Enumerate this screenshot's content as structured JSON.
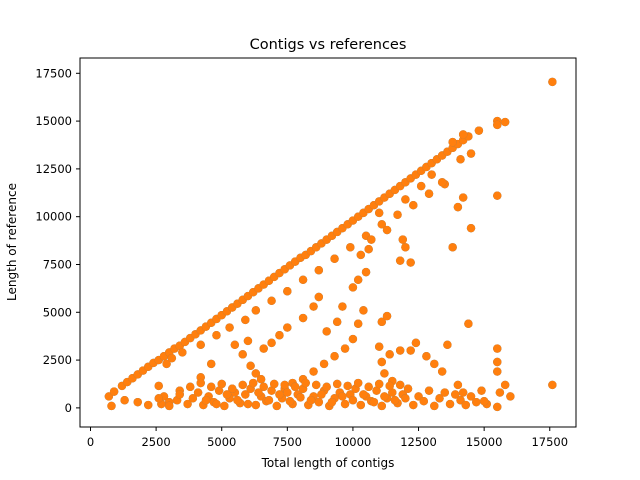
{
  "chart_data": {
    "type": "scatter",
    "title": "Contigs vs references",
    "xlabel": "Total length of contigs",
    "ylabel": "Length of reference",
    "xlim": [
      -400,
      18500
    ],
    "ylim": [
      -1000,
      18300
    ],
    "x_ticks": [
      0,
      2500,
      5000,
      7500,
      10000,
      12500,
      15000,
      17500
    ],
    "y_ticks": [
      0,
      2500,
      5000,
      7500,
      10000,
      12500,
      15000,
      17500
    ],
    "grid": false,
    "legend": "none",
    "colors": {
      "point": "#ff7f0e",
      "point_under": "#1f77b4"
    },
    "series": [
      {
        "points": [
          [
            700,
            600
          ],
          [
            900,
            850
          ],
          [
            1200,
            1150
          ],
          [
            1400,
            1350
          ],
          [
            1600,
            1550
          ],
          [
            1800,
            1750
          ],
          [
            2000,
            1950
          ],
          [
            2200,
            2150
          ],
          [
            2400,
            2350
          ],
          [
            2600,
            2500
          ],
          [
            2800,
            2700
          ],
          [
            3000,
            2900
          ],
          [
            3200,
            3100
          ],
          [
            3400,
            3250
          ],
          [
            3600,
            3450
          ],
          [
            3800,
            3650
          ],
          [
            4000,
            3850
          ],
          [
            4200,
            4050
          ],
          [
            4400,
            4250
          ],
          [
            4600,
            4450
          ],
          [
            4800,
            4650
          ],
          [
            5000,
            4850
          ],
          [
            5200,
            5050
          ],
          [
            5400,
            5250
          ],
          [
            5600,
            5450
          ],
          [
            5800,
            5650
          ],
          [
            6000,
            5850
          ],
          [
            6200,
            6050
          ],
          [
            6400,
            6250
          ],
          [
            6600,
            6450
          ],
          [
            6800,
            6650
          ],
          [
            7000,
            6850
          ],
          [
            7200,
            7050
          ],
          [
            7400,
            7250
          ],
          [
            7600,
            7450
          ],
          [
            7800,
            7650
          ],
          [
            8000,
            7850
          ],
          [
            8200,
            8000
          ],
          [
            8400,
            8200
          ],
          [
            8600,
            8400
          ],
          [
            8800,
            8600
          ],
          [
            9000,
            8800
          ],
          [
            9200,
            9000
          ],
          [
            9400,
            9200
          ],
          [
            9600,
            9400
          ],
          [
            9800,
            9600
          ],
          [
            10000,
            9800
          ],
          [
            10200,
            10000
          ],
          [
            10400,
            10200
          ],
          [
            10600,
            10400
          ],
          [
            10800,
            10600
          ],
          [
            11000,
            10800
          ],
          [
            11200,
            11000
          ],
          [
            11400,
            11200
          ],
          [
            11600,
            11400
          ],
          [
            11800,
            11600
          ],
          [
            12000,
            11800
          ],
          [
            12200,
            12000
          ],
          [
            12400,
            12200
          ],
          [
            12600,
            12400
          ],
          [
            12800,
            12600
          ],
          [
            13000,
            12800
          ],
          [
            13200,
            13000
          ],
          [
            13400,
            13200
          ],
          [
            13600,
            13400
          ],
          [
            13800,
            13600
          ],
          [
            14000,
            13800
          ],
          [
            14200,
            14000
          ],
          [
            14400,
            14200
          ],
          [
            14800,
            14500
          ],
          [
            15500,
            15000
          ],
          [
            15800,
            14950
          ],
          [
            15500,
            14800
          ],
          [
            17600,
            17050
          ],
          [
            2900,
            2300
          ],
          [
            3100,
            2600
          ],
          [
            3500,
            2900
          ],
          [
            4200,
            3300
          ],
          [
            4800,
            3800
          ],
          [
            5300,
            4200
          ],
          [
            5900,
            4600
          ],
          [
            6300,
            5100
          ],
          [
            6900,
            5600
          ],
          [
            7500,
            6100
          ],
          [
            8100,
            6700
          ],
          [
            8700,
            7200
          ],
          [
            9300,
            7800
          ],
          [
            9900,
            8400
          ],
          [
            10500,
            9000
          ],
          [
            11100,
            9600
          ],
          [
            11700,
            10100
          ],
          [
            12300,
            10600
          ],
          [
            12900,
            11200
          ],
          [
            13500,
            11700
          ],
          [
            11000,
            10200
          ],
          [
            11300,
            9300
          ],
          [
            12000,
            10900
          ],
          [
            12600,
            11600
          ],
          [
            13000,
            12200
          ],
          [
            13400,
            11800
          ],
          [
            14100,
            13000
          ],
          [
            14500,
            13300
          ],
          [
            13800,
            13900
          ],
          [
            14200,
            14300
          ],
          [
            10700,
            8800
          ],
          [
            10600,
            8300
          ],
          [
            10300,
            8000
          ],
          [
            11900,
            8800
          ],
          [
            12000,
            8400
          ],
          [
            11800,
            7700
          ],
          [
            12200,
            7600
          ],
          [
            10500,
            7100
          ],
          [
            10200,
            6700
          ],
          [
            10000,
            6300
          ],
          [
            13800,
            8400
          ],
          [
            14000,
            10500
          ],
          [
            14200,
            11000
          ],
          [
            14500,
            9400
          ],
          [
            15500,
            11100
          ],
          [
            14400,
            4400
          ],
          [
            9600,
            5300
          ],
          [
            9400,
            4500
          ],
          [
            9000,
            4000
          ],
          [
            8700,
            5800
          ],
          [
            8500,
            5300
          ],
          [
            8100,
            4700
          ],
          [
            7500,
            4200
          ],
          [
            7200,
            3800
          ],
          [
            6900,
            3400
          ],
          [
            6600,
            3100
          ],
          [
            10400,
            5100
          ],
          [
            10200,
            4400
          ],
          [
            10000,
            3600
          ],
          [
            9700,
            3100
          ],
          [
            9300,
            2700
          ],
          [
            8900,
            2300
          ],
          [
            8500,
            1900
          ],
          [
            8100,
            1500
          ],
          [
            7700,
            1300
          ],
          [
            7400,
            1000
          ],
          [
            11000,
            3200
          ],
          [
            11100,
            2400
          ],
          [
            11200,
            1800
          ],
          [
            11500,
            1400
          ],
          [
            11400,
            2800
          ],
          [
            11800,
            3000
          ],
          [
            12200,
            3000
          ],
          [
            12400,
            3400
          ],
          [
            11100,
            4500
          ],
          [
            11300,
            4800
          ],
          [
            4200,
            1600
          ],
          [
            4600,
            2300
          ],
          [
            3800,
            1100
          ],
          [
            3400,
            900
          ],
          [
            5500,
            3300
          ],
          [
            5800,
            2800
          ],
          [
            6100,
            2200
          ],
          [
            6300,
            1800
          ],
          [
            6500,
            1500
          ],
          [
            6000,
            3500
          ],
          [
            2600,
            1150
          ],
          [
            2800,
            600
          ],
          [
            3000,
            300
          ],
          [
            3300,
            400
          ],
          [
            2700,
            200
          ],
          [
            15500,
            3100
          ],
          [
            15500,
            2400
          ],
          [
            15500,
            1900
          ],
          [
            14000,
            1200
          ],
          [
            13400,
            1900
          ],
          [
            13100,
            2300
          ],
          [
            15800,
            1200
          ],
          [
            17600,
            1200
          ],
          [
            13600,
            3300
          ],
          [
            12800,
            2700
          ],
          [
            800,
            100
          ],
          [
            1300,
            400
          ],
          [
            1800,
            300
          ],
          [
            2200,
            150
          ],
          [
            2600,
            500
          ],
          [
            3000,
            100
          ],
          [
            3400,
            700
          ],
          [
            3700,
            200
          ],
          [
            3900,
            500
          ],
          [
            4100,
            800
          ],
          [
            4300,
            150
          ],
          [
            4500,
            600
          ],
          [
            4700,
            300
          ],
          [
            4900,
            900
          ],
          [
            5100,
            100
          ],
          [
            5300,
            500
          ],
          [
            5500,
            800
          ],
          [
            5700,
            250
          ],
          [
            5900,
            700
          ],
          [
            6100,
            1000
          ],
          [
            6300,
            150
          ],
          [
            6500,
            600
          ],
          [
            6700,
            350
          ],
          [
            6900,
            900
          ],
          [
            7100,
            100
          ],
          [
            7300,
            500
          ],
          [
            7500,
            800
          ],
          [
            7700,
            200
          ],
          [
            7900,
            700
          ],
          [
            8100,
            1000
          ],
          [
            8300,
            150
          ],
          [
            8500,
            600
          ],
          [
            8700,
            300
          ],
          [
            8900,
            900
          ],
          [
            9100,
            100
          ],
          [
            9300,
            500
          ],
          [
            9500,
            800
          ],
          [
            9700,
            200
          ],
          [
            9900,
            700
          ],
          [
            10100,
            1000
          ],
          [
            10300,
            150
          ],
          [
            10500,
            600
          ],
          [
            10700,
            350
          ],
          [
            10900,
            900
          ],
          [
            11100,
            100
          ],
          [
            11300,
            500
          ],
          [
            11500,
            800
          ],
          [
            11700,
            250
          ],
          [
            11900,
            700
          ],
          [
            12100,
            1000
          ],
          [
            12300,
            150
          ],
          [
            12500,
            600
          ],
          [
            12700,
            350
          ],
          [
            12900,
            900
          ],
          [
            13100,
            100
          ],
          [
            13300,
            500
          ],
          [
            13500,
            800
          ],
          [
            13700,
            200
          ],
          [
            13900,
            700
          ],
          [
            14100,
            400
          ],
          [
            14300,
            150
          ],
          [
            14500,
            600
          ],
          [
            14700,
            300
          ],
          [
            14900,
            900
          ],
          [
            15100,
            200
          ],
          [
            15500,
            50
          ],
          [
            15600,
            800
          ],
          [
            16000,
            600
          ],
          [
            15000,
            350
          ],
          [
            14200,
            800
          ],
          [
            4200,
            1300
          ],
          [
            4600,
            1100
          ],
          [
            5000,
            1250
          ],
          [
            5400,
            1000
          ],
          [
            5800,
            1200
          ],
          [
            6200,
            1300
          ],
          [
            6600,
            1100
          ],
          [
            7000,
            1250
          ],
          [
            7400,
            1200
          ],
          [
            7800,
            1100
          ],
          [
            8200,
            1300
          ],
          [
            8600,
            1200
          ],
          [
            9000,
            1100
          ],
          [
            9400,
            1250
          ],
          [
            9800,
            1150
          ],
          [
            10200,
            1300
          ],
          [
            10600,
            1100
          ],
          [
            11000,
            1250
          ],
          [
            11400,
            1150
          ],
          [
            11800,
            1200
          ],
          [
            4400,
            400
          ],
          [
            4800,
            200
          ],
          [
            5200,
            700
          ],
          [
            5600,
            400
          ],
          [
            6000,
            200
          ],
          [
            6400,
            800
          ],
          [
            6800,
            400
          ],
          [
            7200,
            700
          ],
          [
            7600,
            350
          ],
          [
            8000,
            550
          ],
          [
            8400,
            400
          ],
          [
            8800,
            700
          ],
          [
            9200,
            300
          ],
          [
            9600,
            600
          ],
          [
            10000,
            400
          ],
          [
            10400,
            700
          ],
          [
            10800,
            300
          ],
          [
            11200,
            600
          ],
          [
            11600,
            400
          ],
          [
            12000,
            500
          ]
        ]
      }
    ]
  }
}
